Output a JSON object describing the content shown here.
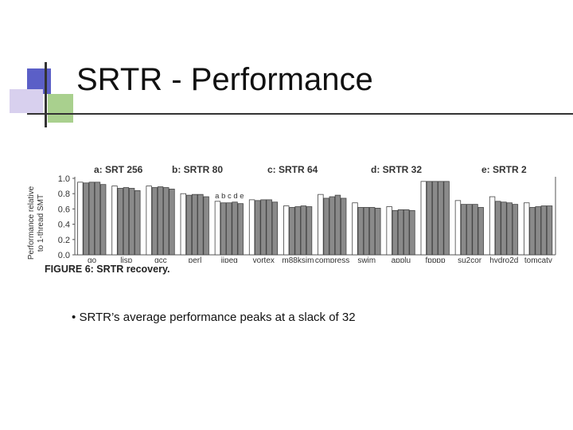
{
  "slide": {
    "title": "SRTR - Performance",
    "bullet": "SRTR’s average performance peaks at a slack of 32",
    "bullet_marker": "•"
  },
  "figure": {
    "caption": "FIGURE 6: SRTR recovery."
  },
  "chart_data": {
    "type": "bar",
    "ylabel": "Performance relative to 1-thread SMT",
    "ylabel_lines": [
      "Performance relative",
      "to 1-thread SMT"
    ],
    "ylim": [
      0,
      1.0
    ],
    "yticks": [
      "0.0",
      "0.2",
      "0.4",
      "0.6",
      "0.8",
      "1.0"
    ],
    "grid": false,
    "categories": [
      "go",
      "lisp",
      "gcc",
      "perl",
      "ijpeg",
      "vortex",
      "m88ksim",
      "compress",
      "swim",
      "applu",
      "fpppp",
      "su2cor",
      "hydro2d",
      "tomcatv"
    ],
    "legend": [
      {
        "key": "a",
        "label": "a: SRT 256"
      },
      {
        "key": "b",
        "label": "b: SRTR 80"
      },
      {
        "key": "c",
        "label": "c: SRTR 64"
      },
      {
        "key": "d",
        "label": "d: SRTR 32"
      },
      {
        "key": "e",
        "label": "e: SRTR 2"
      }
    ],
    "bar_letters_label": "a b c d e",
    "series": [
      {
        "name": "a: SRT 256",
        "color": "#ffffff",
        "values": [
          0.95,
          0.9,
          0.9,
          0.8,
          0.7,
          0.72,
          0.64,
          0.79,
          0.68,
          0.63,
          0.96,
          0.71,
          0.76,
          0.68
        ]
      },
      {
        "name": "b: SRTR 80",
        "color": "#8a8a8a",
        "values": [
          0.94,
          0.87,
          0.88,
          0.78,
          0.68,
          0.71,
          0.62,
          0.74,
          0.62,
          0.58,
          0.96,
          0.66,
          0.7,
          0.62
        ]
      },
      {
        "name": "c: SRTR 64",
        "color": "#8a8a8a",
        "values": [
          0.95,
          0.88,
          0.89,
          0.79,
          0.68,
          0.72,
          0.63,
          0.76,
          0.62,
          0.59,
          0.96,
          0.66,
          0.69,
          0.63
        ]
      },
      {
        "name": "d: SRTR 32",
        "color": "#8a8a8a",
        "values": [
          0.95,
          0.87,
          0.88,
          0.79,
          0.69,
          0.72,
          0.64,
          0.78,
          0.62,
          0.59,
          0.96,
          0.66,
          0.68,
          0.64
        ]
      },
      {
        "name": "e: SRTR 2",
        "color": "#8a8a8a",
        "values": [
          0.92,
          0.84,
          0.86,
          0.76,
          0.67,
          0.69,
          0.63,
          0.74,
          0.61,
          0.58,
          0.96,
          0.62,
          0.66,
          0.64
        ]
      }
    ]
  }
}
